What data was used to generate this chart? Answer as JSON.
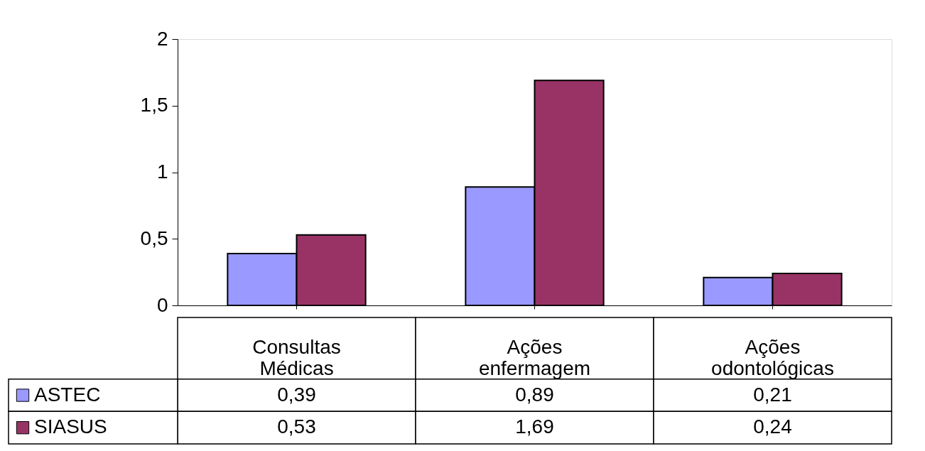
{
  "chart_data": {
    "type": "bar",
    "categories": [
      "Consultas Médicas",
      "Ações enfermagem",
      "Ações odontológicas"
    ],
    "series": [
      {
        "name": "ASTEC",
        "color": "#9999ff",
        "values": [
          0.39,
          0.89,
          0.21
        ],
        "value_labels": [
          "0,39",
          "0,89",
          "0,21"
        ]
      },
      {
        "name": "SIASUS",
        "color": "#993366",
        "values": [
          0.53,
          1.69,
          0.24
        ],
        "value_labels": [
          "0,53",
          "1,69",
          "0,24"
        ]
      }
    ],
    "ylim": [
      0,
      2
    ],
    "yticks": [
      0,
      {
        "value": 0.5,
        "label": "0,5"
      },
      1,
      {
        "value": 1.5,
        "label": "1,5"
      },
      2
    ],
    "grid": false,
    "legend": "bottom left"
  }
}
